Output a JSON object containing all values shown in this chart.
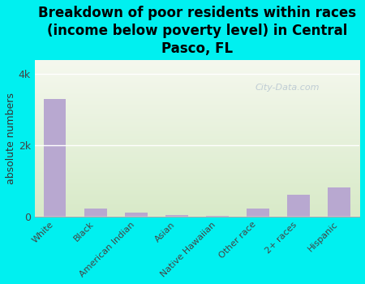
{
  "title": "Breakdown of poor residents within races\n(income below poverty level) in Central\nPasco, FL",
  "categories": [
    "White",
    "Black",
    "American Indian",
    "Asian",
    "Native Hawaiian",
    "Other race",
    "2+ races",
    "Hispanic"
  ],
  "values": [
    3300,
    220,
    110,
    25,
    15,
    220,
    600,
    820
  ],
  "bar_color": "#b8a8d0",
  "ylabel": "absolute numbers",
  "ylim": [
    0,
    4400
  ],
  "yticks": [
    0,
    2000,
    4000
  ],
  "background_color": "#00f0f0",
  "plot_bg_color_top": "#d8eac8",
  "plot_bg_color_bottom": "#f5f8ee",
  "title_fontsize": 12,
  "title_fontweight": "bold",
  "watermark": "City-Data.com",
  "watermark_color": "#aabbcc",
  "grid_color": "#ffffff",
  "tick_color": "#444444",
  "ylabel_color": "#333333"
}
